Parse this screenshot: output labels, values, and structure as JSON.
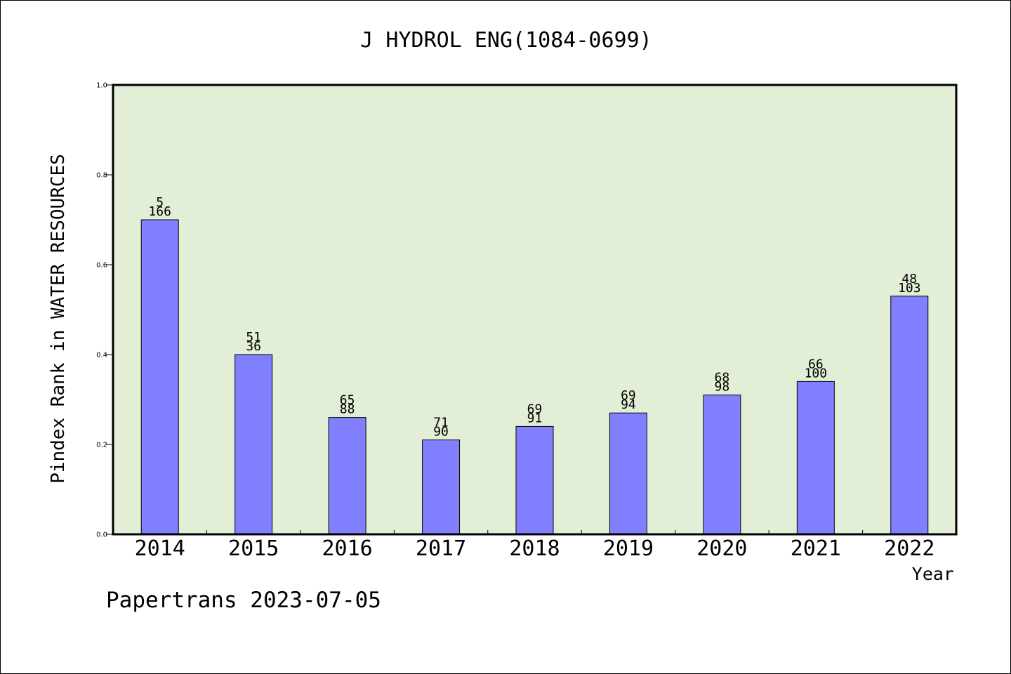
{
  "chart_data": {
    "type": "bar",
    "title": "J HYDROL ENG(1084-0699)",
    "xlabel": "Year",
    "ylabel": "Pindex Rank in WATER RESOURCES",
    "categories": [
      "2014",
      "2015",
      "2016",
      "2017",
      "2018",
      "2019",
      "2020",
      "2021",
      "2022"
    ],
    "values": [
      0.7,
      0.4,
      0.26,
      0.21,
      0.24,
      0.27,
      0.31,
      0.34,
      0.53
    ],
    "label_top": [
      "5",
      "51",
      "65",
      "71",
      "69",
      "69",
      "68",
      "66",
      "48"
    ],
    "label_bottom": [
      "166",
      "36",
      "88",
      "90",
      "91",
      "94",
      "98",
      "100",
      "103"
    ],
    "ylim": [
      0.0,
      1.0
    ],
    "yticks": [
      "0.0",
      "0.2",
      "0.4",
      "0.6",
      "0.8",
      "1.0"
    ],
    "grid": false,
    "colors": {
      "bar": "#8080ff",
      "plot_background": "#e2efd6",
      "axis": "#000000"
    }
  },
  "footer": {
    "watermark": "Papertrans 2023-07-05"
  }
}
